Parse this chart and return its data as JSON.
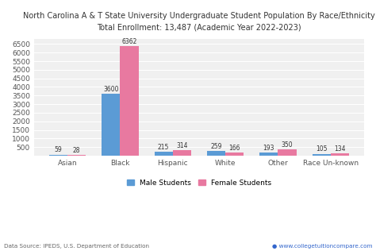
{
  "title_line1": "North Carolina A & T State University Undergraduate Student Population By Race/Ethnicity",
  "title_line2": "Total Enrollment: 13,487 (Academic Year 2022-2023)",
  "categories": [
    "Asian",
    "Black",
    "Hispanic",
    "White",
    "Other",
    "Race Un-known"
  ],
  "male_values": [
    59,
    3600,
    215,
    259,
    193,
    105
  ],
  "female_values": [
    28,
    6362,
    314,
    166,
    350,
    134
  ],
  "male_color": "#5B9BD5",
  "female_color": "#E879A0",
  "ylim": [
    0,
    6800
  ],
  "yticks": [
    500,
    1000,
    1500,
    2000,
    2500,
    3000,
    3500,
    4000,
    4500,
    5000,
    5500,
    6000,
    6500
  ],
  "legend_male": "Male Students",
  "legend_female": "Female Students",
  "footnote": "Data Source: IPEDS, U.S. Department of Education",
  "website": "www.collegetuitioncompare.com",
  "background_color": "#ffffff",
  "plot_bg_color": "#f0f0f0",
  "bar_label_fontsize": 5.5,
  "title_fontsize1": 7.0,
  "title_fontsize2": 6.5,
  "tick_fontsize": 6.5,
  "bar_width": 0.35
}
